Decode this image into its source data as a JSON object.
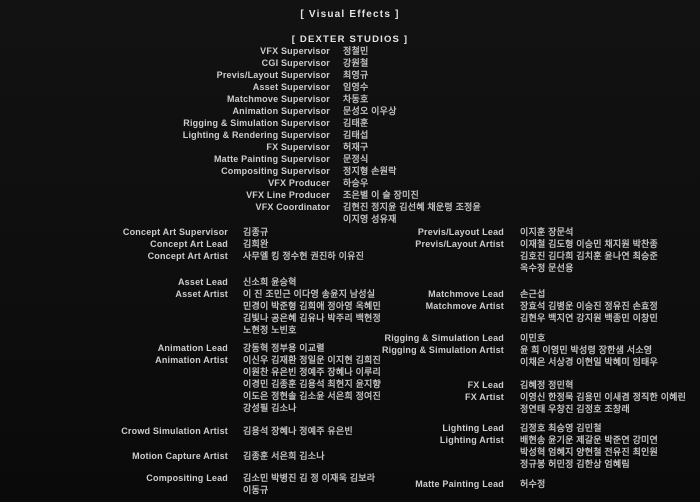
{
  "header": {
    "section_title": "[  Visual Effects  ]",
    "studio_title": "[ DEXTER STUDIOS ]"
  },
  "colors": {
    "background": "#0e0e0e",
    "text": "#c6c6c6",
    "title_text": "#e4e4e4"
  },
  "studio_credits": [
    {
      "role": "VFX Supervisor",
      "names": [
        "정철민"
      ]
    },
    {
      "role": "CGI Supervisor",
      "names": [
        "강원철"
      ]
    },
    {
      "role": "Previs/Layout Supervisor",
      "names": [
        "최영규"
      ]
    },
    {
      "role": "Asset Supervisor",
      "names": [
        "임영수"
      ]
    },
    {
      "role": "Matchmove Supervisor",
      "names": [
        "차동호"
      ]
    },
    {
      "role": "Animation Supervisor",
      "names": [
        "문성오 이우상"
      ]
    },
    {
      "role": "Rigging & Simulation Supervisor",
      "names": [
        "김태훈"
      ]
    },
    {
      "role": "Lighting & Rendering Supervisor",
      "names": [
        "김태섭"
      ]
    },
    {
      "role": "FX Supervisor",
      "names": [
        "허재구"
      ]
    },
    {
      "role": "Matte Painting Supervisor",
      "names": [
        "문정식"
      ]
    },
    {
      "role": "Compositing Supervisor",
      "names": [
        "정지형 손원락"
      ]
    },
    {
      "role": "VFX Producer",
      "names": [
        "하승우"
      ]
    },
    {
      "role": "VFX Line Producer",
      "names": [
        "조은별 이 슬 장미진"
      ]
    },
    {
      "role": "VFX Coordinator",
      "names": [
        "김현진 정지윤 김선혜 채운령 조정윤",
        "이지영 성유재"
      ]
    }
  ],
  "left_groups": [
    {
      "rows": [
        {
          "role": "Concept Art Supervisor",
          "names": [
            "김종규"
          ]
        },
        {
          "role": "Concept Art Lead",
          "names": [
            "김희완"
          ]
        },
        {
          "role": "Concept Art Artist",
          "names": [
            "사무엘 킹 정수현 권진하 이유진"
          ]
        }
      ]
    },
    {
      "rows": [
        {
          "role": "Asset Lead",
          "names": [
            "신소희 윤승혁"
          ]
        },
        {
          "role": "Asset Artist",
          "names": [
            "이 진 조민근 이다영 송윤지 남성실",
            "민경이 박준형 김희애 정아영 옥혜민",
            "김빛나 공은혜 김유나 박주리 백현정",
            "노현정 노빈호"
          ]
        }
      ]
    },
    {
      "rows": [
        {
          "role": "Animation Lead",
          "names": [
            "강동혁 정부용 이교렬"
          ]
        },
        {
          "role": "Animation Artist",
          "names": [
            "이신우 김재환 정일운 이지현 김희진",
            "이원찬 유은빈 정예주 장혜나 이루리",
            "이경민 김종훈 김용석 최현지 윤지향",
            "이도은 정현솔 김소윤 서은희 정여진",
            "강성필 김소나"
          ]
        }
      ]
    },
    {
      "rows": [
        {
          "role": "Crowd Simulation Artist",
          "names": [
            "김용석 장혜나 정예주 유은빈"
          ]
        }
      ]
    },
    {
      "rows": [
        {
          "role": "Motion Capture Artist",
          "names": [
            "김종훈 서은희 김소나"
          ]
        }
      ]
    },
    {
      "rows": [
        {
          "role": "Compositing Lead",
          "names": [
            "김소민 박병진 김 정 이재욱 김보라",
            "이동규"
          ]
        }
      ]
    }
  ],
  "right_groups": [
    {
      "rows": [
        {
          "role": "Previs/Layout Lead",
          "names": [
            "이지훈 장문석"
          ]
        },
        {
          "role": "Previs/Layout Artist",
          "names": [
            "이재철 김도형 이승민 채지원 박찬종",
            "김호진 김다희 김치훈 윤나연 최승준",
            "옥수정 문선용"
          ]
        }
      ]
    },
    {
      "rows": [
        {
          "role": "Matchmove Lead",
          "names": [
            "손근섭"
          ]
        },
        {
          "role": "Matchmove Artist",
          "names": [
            "장효석 김병운 이승진 정유진 손효정",
            "김현우 백지연 강지원 백종민 이창민"
          ]
        }
      ]
    },
    {
      "rows": [
        {
          "role": "Rigging & Simulation Lead",
          "names": [
            "이민호"
          ]
        },
        {
          "role": "Rigging & Simulation Artist",
          "names": [
            "윤 희 이영민 박성령 장한샘 서소영",
            "이채은 서상경 이현일 박혜미 임태우"
          ]
        }
      ]
    },
    {
      "rows": [
        {
          "role": "FX Lead",
          "names": [
            "김혜정 정민혁"
          ]
        },
        {
          "role": "FX Artist",
          "names": [
            "이영신 한정묵 김용민 이새겸 정직한 이혜린",
            "정연태 우창진 김정호 조창래"
          ]
        }
      ]
    },
    {
      "rows": [
        {
          "role": "Lighting Lead",
          "names": [
            "김정호 최승영 김민철"
          ]
        },
        {
          "role": "Lighting Artist",
          "names": [
            "배현송 윤기운 제갈운 박준연 강미연",
            "박성혁 엄혜지 양현철 전유진 최인원",
            "정규봉 허민정 김한상 엄혜림"
          ]
        }
      ]
    },
    {
      "rows": [
        {
          "role": "Matte Painting Lead",
          "names": [
            "허수정"
          ]
        }
      ]
    }
  ]
}
